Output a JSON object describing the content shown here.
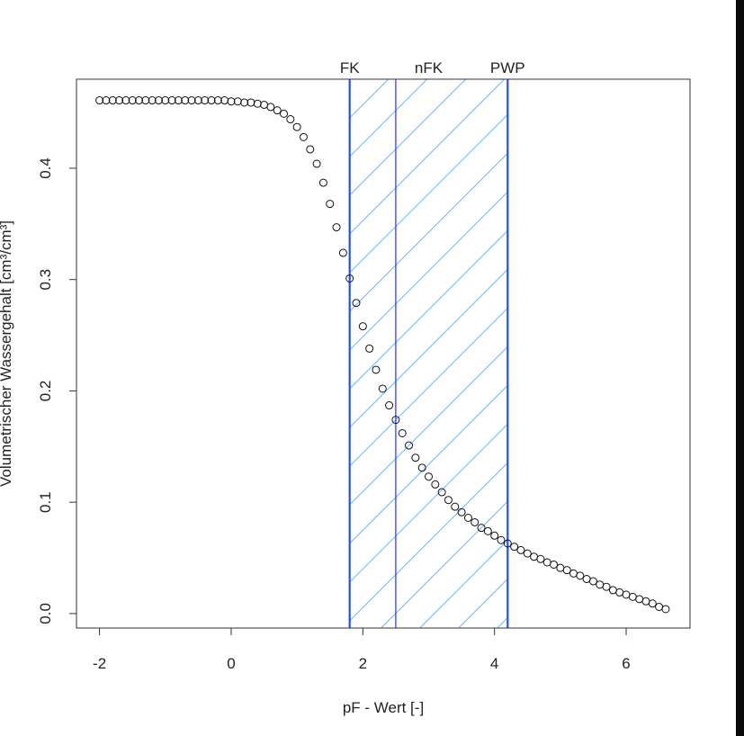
{
  "chart_data": {
    "type": "scatter",
    "title": "",
    "xlabel": "pF - Wert [-]",
    "ylabel": "Volumetrischer Wassergehalt [cm³/cm³]",
    "xlim": [
      -2.35,
      6.97
    ],
    "ylim": [
      -0.013,
      0.48
    ],
    "xticks": [
      -2,
      0,
      2,
      4,
      6
    ],
    "xtick_labels": [
      "-2",
      "0",
      "2",
      "4",
      "6"
    ],
    "yticks": [
      0.0,
      0.1,
      0.2,
      0.3,
      0.4
    ],
    "ytick_labels": [
      "0.0",
      "0.1",
      "0.2",
      "0.3",
      "0.4"
    ],
    "grid": false,
    "x_start": -2.0,
    "x_step": 0.1,
    "values": [
      0.461,
      0.461,
      0.461,
      0.461,
      0.461,
      0.461,
      0.461,
      0.461,
      0.461,
      0.461,
      0.461,
      0.461,
      0.461,
      0.461,
      0.461,
      0.461,
      0.461,
      0.461,
      0.461,
      0.461,
      0.46,
      0.46,
      0.459,
      0.459,
      0.458,
      0.457,
      0.455,
      0.452,
      0.449,
      0.444,
      0.437,
      0.428,
      0.417,
      0.404,
      0.387,
      0.368,
      0.347,
      0.324,
      0.301,
      0.279,
      0.258,
      0.238,
      0.219,
      0.202,
      0.187,
      0.174,
      0.162,
      0.151,
      0.14,
      0.131,
      0.123,
      0.116,
      0.109,
      0.102,
      0.096,
      0.091,
      0.086,
      0.082,
      0.077,
      0.074,
      0.07,
      0.066,
      0.063,
      0.06,
      0.057,
      0.054,
      0.051,
      0.049,
      0.046,
      0.044,
      0.041,
      0.039,
      0.036,
      0.034,
      0.031,
      0.029,
      0.026,
      0.024,
      0.021,
      0.019,
      0.017,
      0.015,
      0.013,
      0.011,
      0.009,
      0.006,
      0.004
    ],
    "vlines": [
      {
        "label": "FK",
        "x": 1.8,
        "color": "#1f4fff",
        "width": 2.2
      },
      {
        "label": "nFK",
        "x": 2.5,
        "color": "#3a3aff",
        "width": 1.3
      },
      {
        "label": "PWP",
        "x": 4.2,
        "color": "#1f4fff",
        "width": 2.2
      }
    ],
    "hatch": {
      "from": 1.8,
      "to": 4.2,
      "color": "#6ab4ff"
    },
    "annotations": [
      {
        "text": "FK",
        "x": 1.8
      },
      {
        "text": "nFK",
        "x": 3.0
      },
      {
        "text": "PWP",
        "x": 4.2
      }
    ]
  }
}
